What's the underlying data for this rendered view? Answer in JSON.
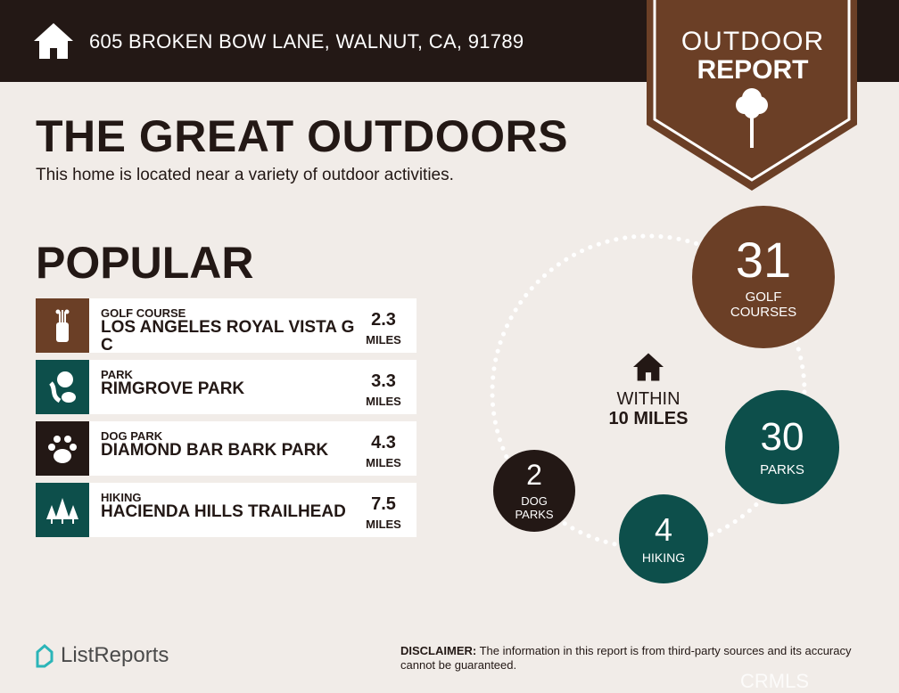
{
  "header": {
    "address": "605 BROKEN BOW LANE, WALNUT, CA, 91789",
    "badge_line1": "OUTDOOR",
    "badge_line2": "REPORT"
  },
  "title": "THE GREAT OUTDOORS",
  "subtitle": "This home is located near a variety of outdoor activities.",
  "popular": {
    "heading": "POPULAR",
    "items": [
      {
        "category": "GOLF COURSE",
        "name": "LOS ANGELES ROYAL VISTA G C",
        "distance": "2.3",
        "unit": "MILES",
        "icon": "golf-bag-icon",
        "color": "#6b3f26"
      },
      {
        "category": "PARK",
        "name": "RIMGROVE PARK",
        "distance": "3.3",
        "unit": "MILES",
        "icon": "park-tree-icon",
        "color": "#0d4f4b"
      },
      {
        "category": "DOG PARK",
        "name": "DIAMOND BAR BARK PARK",
        "distance": "4.3",
        "unit": "MILES",
        "icon": "paw-icon",
        "color": "#231815"
      },
      {
        "category": "HIKING",
        "name": "HACIENDA HILLS TRAILHEAD",
        "distance": "7.5",
        "unit": "MILES",
        "icon": "pine-trees-icon",
        "color": "#0d4f4b"
      }
    ]
  },
  "radius": {
    "line1": "WITHIN",
    "line2": "10 MILES"
  },
  "counts": [
    {
      "value": "31",
      "label1": "GOLF",
      "label2": "COURSES",
      "color": "#6b3f26"
    },
    {
      "value": "30",
      "label1": "PARKS",
      "label2": "",
      "color": "#0d4f4b"
    },
    {
      "value": "4",
      "label1": "HIKING",
      "label2": "",
      "color": "#0d4f4b"
    },
    {
      "value": "2",
      "label1": "DOG",
      "label2": "PARKS",
      "color": "#231815"
    }
  ],
  "footer": {
    "brand": "ListReports",
    "disclaimer_label": "DISCLAIMER:",
    "disclaimer_text": " The information in this report is from third-party sources and its accuracy cannot be guaranteed.",
    "watermark": "CRMLS"
  }
}
